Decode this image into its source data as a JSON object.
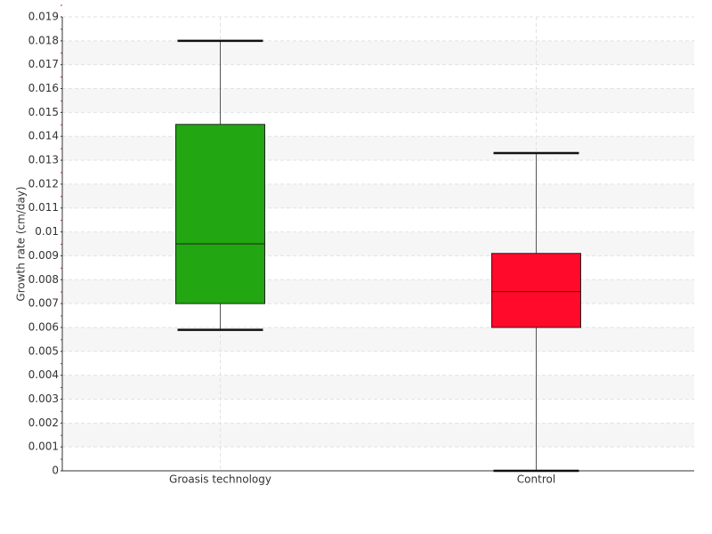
{
  "chart_data": {
    "type": "box",
    "y_label": "Growth rate (cm/day)",
    "categories": [
      "Groasis technology",
      "Control"
    ],
    "boxes": [
      {
        "min": 0.0059,
        "q1": 0.007,
        "median": 0.0095,
        "q3": 0.0145,
        "max": 0.018,
        "color": "#22a611"
      },
      {
        "min": 0,
        "q1": 0.006,
        "median": 0.0075,
        "q3": 0.0091,
        "max": 0.0133,
        "color": "#ff0a2a"
      }
    ],
    "ylim": [
      0,
      0.019
    ],
    "yticks": [
      0,
      0.001,
      0.002,
      0.003,
      0.004,
      0.005,
      0.006,
      0.007,
      0.008,
      0.009,
      0.01,
      0.011,
      0.012,
      0.013,
      0.014,
      0.015,
      0.016,
      0.017,
      0.018,
      0.019
    ],
    "grid": true
  }
}
